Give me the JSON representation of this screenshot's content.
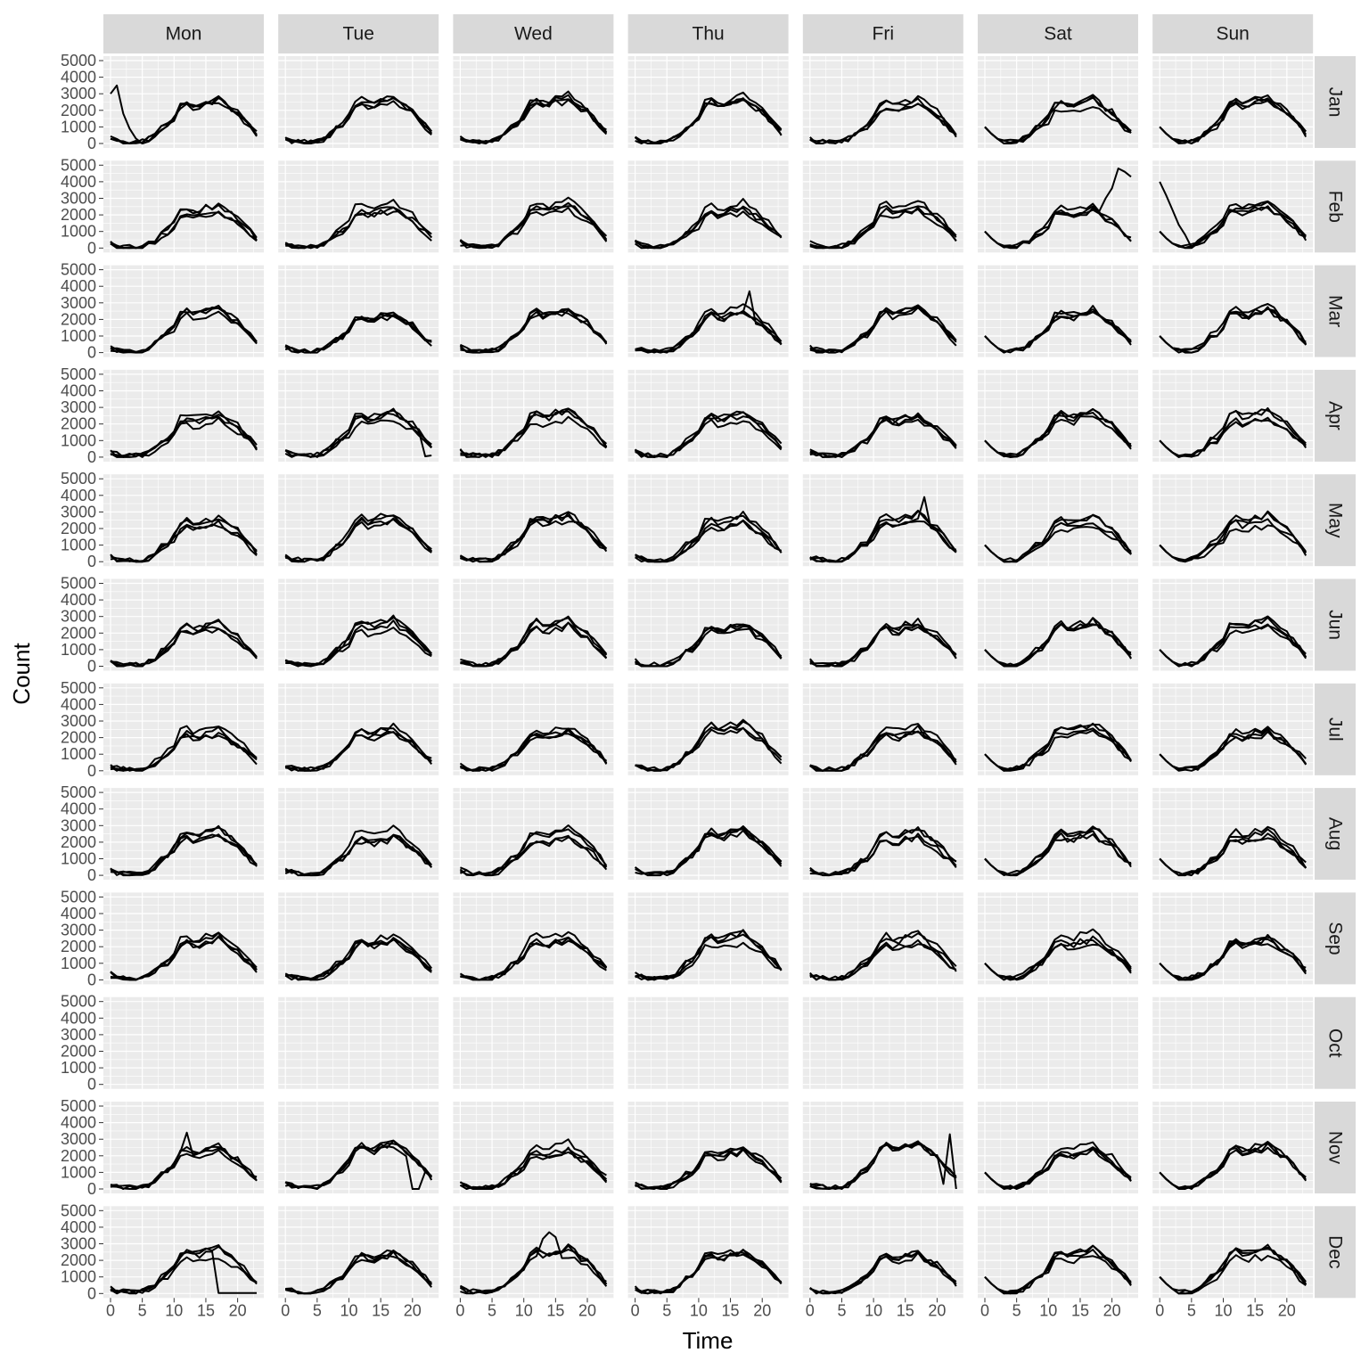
{
  "chart_data": {
    "type": "line",
    "layout": "facet-grid",
    "xlabel": "Time",
    "ylabel": "Count",
    "columns": [
      "Mon",
      "Tue",
      "Wed",
      "Thu",
      "Fri",
      "Sat",
      "Sun"
    ],
    "rows": [
      "Jan",
      "Feb",
      "Mar",
      "Apr",
      "May",
      "Jun",
      "Jul",
      "Aug",
      "Sep",
      "Oct",
      "Nov",
      "Dec"
    ],
    "x_ticks": [
      0,
      5,
      10,
      15,
      20
    ],
    "y_ticks": [
      0,
      1000,
      2000,
      3000,
      4000,
      5000
    ],
    "xlim": [
      0,
      23
    ],
    "ylim": [
      0,
      5000
    ],
    "x_values": [
      0,
      1,
      2,
      3,
      4,
      5,
      6,
      7,
      8,
      9,
      10,
      11,
      12,
      13,
      14,
      15,
      16,
      17,
      18,
      19,
      20,
      21,
      22,
      23
    ],
    "panel_background": "#ebebeb",
    "strip_background": "#d9d9d9",
    "grid_color": "#ffffff",
    "line_color": "#000000",
    "typical_daily_profile_hourly": [
      300,
      150,
      80,
      50,
      50,
      100,
      250,
      500,
      900,
      1100,
      1500,
      2200,
      2400,
      2200,
      2200,
      2400,
      2400,
      2600,
      2300,
      2000,
      1800,
      1400,
      1000,
      600
    ],
    "series_lines_per_panel": [
      [
        4,
        4,
        4,
        4,
        4,
        4,
        4
      ],
      [
        4,
        4,
        4,
        4,
        4,
        4,
        4
      ],
      [
        4,
        4,
        4,
        4,
        4,
        4,
        4
      ],
      [
        4,
        4,
        4,
        4,
        4,
        4,
        4
      ],
      [
        4,
        4,
        4,
        4,
        4,
        4,
        4
      ],
      [
        4,
        4,
        4,
        4,
        4,
        4,
        4
      ],
      [
        4,
        4,
        4,
        4,
        4,
        4,
        4
      ],
      [
        4,
        4,
        4,
        4,
        4,
        4,
        4
      ],
      [
        4,
        4,
        4,
        4,
        4,
        4,
        4
      ],
      [
        0,
        0,
        0,
        0,
        0,
        0,
        0
      ],
      [
        4,
        4,
        4,
        4,
        4,
        4,
        4
      ],
      [
        4,
        4,
        4,
        4,
        4,
        4,
        4
      ]
    ],
    "notable_features": [
      {
        "row": "Jan",
        "column": "Mon",
        "description": "one line starts near 3000-3500 at hours 0-1 and falls to near 0 by hour 4"
      },
      {
        "row": "Feb",
        "column": "Sat",
        "description": "one line rises to about 4800 at hour 21"
      },
      {
        "row": "Feb",
        "column": "Sun",
        "description": "one line starts near 4000 at hour 0"
      },
      {
        "row": "Mar",
        "column": "Thu",
        "description": "one line peaks near 3700 at hour 18"
      },
      {
        "row": "Apr",
        "column": "Tue",
        "description": "one line drops to near 0 at hour 22"
      },
      {
        "row": "May",
        "column": "Fri",
        "description": "one line peaks near 3900 at hour 18"
      },
      {
        "row": "Nov",
        "column": "Mon",
        "description": "one line peaks near 3400 at hour 12"
      },
      {
        "row": "Nov",
        "column": "Tue",
        "description": "one line drops to 0 around hours 20-21"
      },
      {
        "row": "Nov",
        "column": "Fri",
        "description": "lines spike near 3300 and drop to 0 near hours 21-23"
      },
      {
        "row": "Dec",
        "column": "Mon",
        "description": "one line drops to near 0 from hour 17 onward"
      },
      {
        "row": "Dec",
        "column": "Wed",
        "description": "one line peaks near 3700 at hour 14"
      },
      {
        "row": "Oct",
        "column": "all",
        "description": "no data lines"
      }
    ]
  }
}
